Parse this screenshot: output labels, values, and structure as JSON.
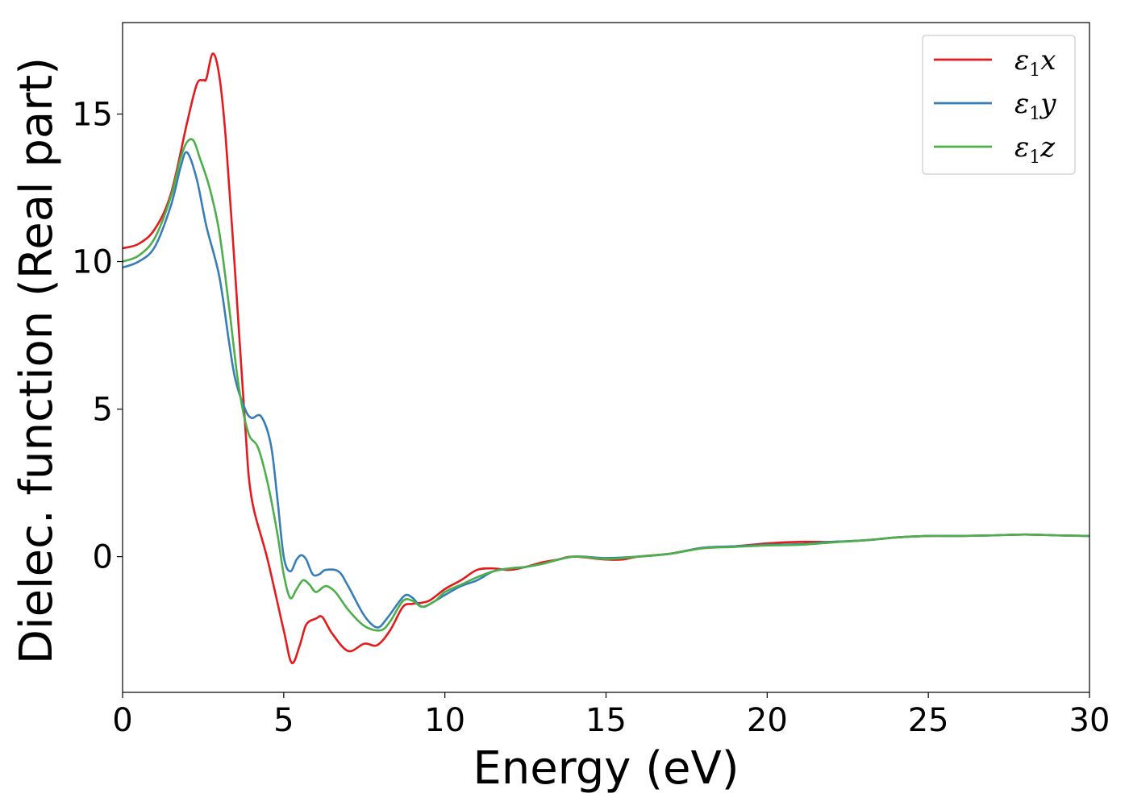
{
  "chart_data": {
    "type": "line",
    "xlabel": "Energy (eV)",
    "ylabel": "Dielec. function (Real part)",
    "xlim": [
      0,
      30
    ],
    "ylim": [
      -4.6,
      18.1
    ],
    "xticks": [
      0,
      5,
      10,
      15,
      20,
      25,
      30
    ],
    "yticks": [
      0,
      5,
      10,
      15
    ],
    "grid": false,
    "legend_position": "top-right",
    "series": [
      {
        "name": "ε₁x",
        "legend_base": "ε",
        "legend_sub": "1",
        "legend_tail": "x",
        "color": "#e41a1c",
        "points": [
          [
            0,
            10.45
          ],
          [
            0.5,
            10.6
          ],
          [
            1,
            11.1
          ],
          [
            1.5,
            12.3
          ],
          [
            2,
            14.7
          ],
          [
            2.3,
            16.0
          ],
          [
            2.5,
            16.15
          ],
          [
            2.6,
            16.2
          ],
          [
            2.8,
            17.05
          ],
          [
            3,
            16.3
          ],
          [
            3.2,
            14.2
          ],
          [
            3.5,
            9.5
          ],
          [
            3.8,
            4.5
          ],
          [
            4,
            2.0
          ],
          [
            4.5,
            -0.1
          ],
          [
            5,
            -2.5
          ],
          [
            5.25,
            -3.6
          ],
          [
            5.5,
            -3.0
          ],
          [
            5.7,
            -2.3
          ],
          [
            6,
            -2.1
          ],
          [
            6.2,
            -2.05
          ],
          [
            6.5,
            -2.6
          ],
          [
            7,
            -3.2
          ],
          [
            7.5,
            -2.95
          ],
          [
            7.9,
            -3.0
          ],
          [
            8.3,
            -2.5
          ],
          [
            8.7,
            -1.7
          ],
          [
            9,
            -1.6
          ],
          [
            9.5,
            -1.5
          ],
          [
            10,
            -1.1
          ],
          [
            10.5,
            -0.8
          ],
          [
            11,
            -0.45
          ],
          [
            11.5,
            -0.4
          ],
          [
            12,
            -0.45
          ],
          [
            12.5,
            -0.35
          ],
          [
            13,
            -0.2
          ],
          [
            13.5,
            -0.1
          ],
          [
            14,
            0.0
          ],
          [
            15,
            -0.1
          ],
          [
            15.5,
            -0.1
          ],
          [
            16,
            0.0
          ],
          [
            17,
            0.1
          ],
          [
            18,
            0.3
          ],
          [
            19,
            0.35
          ],
          [
            20,
            0.45
          ],
          [
            21,
            0.5
          ],
          [
            22,
            0.5
          ],
          [
            23,
            0.55
          ],
          [
            24,
            0.65
          ],
          [
            25,
            0.7
          ],
          [
            26,
            0.7
          ],
          [
            27,
            0.72
          ],
          [
            28,
            0.75
          ],
          [
            29,
            0.72
          ],
          [
            30,
            0.7
          ]
        ]
      },
      {
        "name": "ε₁y",
        "legend_base": "ε",
        "legend_sub": "1",
        "legend_tail": "y",
        "color": "#377eb8",
        "points": [
          [
            0,
            9.8
          ],
          [
            0.5,
            10.0
          ],
          [
            1,
            10.5
          ],
          [
            1.5,
            11.9
          ],
          [
            1.8,
            13.2
          ],
          [
            2,
            13.7
          ],
          [
            2.3,
            12.8
          ],
          [
            2.6,
            11.2
          ],
          [
            3,
            9.5
          ],
          [
            3.3,
            7.3
          ],
          [
            3.5,
            6.0
          ],
          [
            3.8,
            5.0
          ],
          [
            4,
            4.7
          ],
          [
            4.3,
            4.75
          ],
          [
            4.6,
            3.8
          ],
          [
            4.8,
            2.0
          ],
          [
            5,
            0.0
          ],
          [
            5.2,
            -0.5
          ],
          [
            5.4,
            -0.1
          ],
          [
            5.55,
            0.05
          ],
          [
            5.7,
            -0.1
          ],
          [
            5.9,
            -0.6
          ],
          [
            6.1,
            -0.6
          ],
          [
            6.3,
            -0.45
          ],
          [
            6.7,
            -0.5
          ],
          [
            7,
            -1.0
          ],
          [
            7.5,
            -2.0
          ],
          [
            7.9,
            -2.4
          ],
          [
            8.2,
            -2.1
          ],
          [
            8.6,
            -1.5
          ],
          [
            8.8,
            -1.3
          ],
          [
            9,
            -1.4
          ],
          [
            9.3,
            -1.7
          ],
          [
            9.7,
            -1.5
          ],
          [
            10,
            -1.3
          ],
          [
            10.5,
            -1.0
          ],
          [
            11,
            -0.8
          ],
          [
            11.5,
            -0.5
          ],
          [
            12,
            -0.4
          ],
          [
            12.5,
            -0.35
          ],
          [
            13,
            -0.25
          ],
          [
            14,
            0.0
          ],
          [
            15,
            -0.05
          ],
          [
            16,
            0.0
          ],
          [
            17,
            0.1
          ],
          [
            18,
            0.3
          ],
          [
            19,
            0.35
          ],
          [
            20,
            0.4
          ],
          [
            21,
            0.42
          ],
          [
            22,
            0.5
          ],
          [
            23,
            0.55
          ],
          [
            24,
            0.65
          ],
          [
            25,
            0.7
          ],
          [
            26,
            0.7
          ],
          [
            27,
            0.72
          ],
          [
            28,
            0.75
          ],
          [
            29,
            0.72
          ],
          [
            30,
            0.7
          ]
        ]
      },
      {
        "name": "ε₁z",
        "legend_base": "ε",
        "legend_sub": "1",
        "legend_tail": "z",
        "color": "#4daf4a",
        "points": [
          [
            0,
            10.0
          ],
          [
            0.5,
            10.2
          ],
          [
            1,
            10.8
          ],
          [
            1.5,
            12.2
          ],
          [
            1.8,
            13.5
          ],
          [
            2,
            14.05
          ],
          [
            2.2,
            14.1
          ],
          [
            2.4,
            13.5
          ],
          [
            2.7,
            12.5
          ],
          [
            3,
            11.0
          ],
          [
            3.3,
            8.5
          ],
          [
            3.6,
            5.8
          ],
          [
            3.9,
            4.2
          ],
          [
            4.2,
            3.7
          ],
          [
            4.5,
            2.5
          ],
          [
            4.8,
            0.8
          ],
          [
            5,
            -0.6
          ],
          [
            5.2,
            -1.4
          ],
          [
            5.4,
            -1.1
          ],
          [
            5.6,
            -0.8
          ],
          [
            5.8,
            -0.95
          ],
          [
            6,
            -1.2
          ],
          [
            6.3,
            -1.0
          ],
          [
            6.6,
            -1.2
          ],
          [
            7,
            -1.8
          ],
          [
            7.5,
            -2.35
          ],
          [
            8,
            -2.5
          ],
          [
            8.3,
            -2.2
          ],
          [
            8.7,
            -1.5
          ],
          [
            9,
            -1.5
          ],
          [
            9.3,
            -1.7
          ],
          [
            9.7,
            -1.5
          ],
          [
            10,
            -1.2
          ],
          [
            10.5,
            -0.95
          ],
          [
            11,
            -0.7
          ],
          [
            11.5,
            -0.5
          ],
          [
            12,
            -0.4
          ],
          [
            12.5,
            -0.35
          ],
          [
            13,
            -0.25
          ],
          [
            14,
            0.0
          ],
          [
            15,
            -0.08
          ],
          [
            16,
            0.0
          ],
          [
            17,
            0.1
          ],
          [
            18,
            0.28
          ],
          [
            19,
            0.33
          ],
          [
            20,
            0.38
          ],
          [
            21,
            0.4
          ],
          [
            22,
            0.48
          ],
          [
            23,
            0.55
          ],
          [
            24,
            0.65
          ],
          [
            25,
            0.7
          ],
          [
            26,
            0.7
          ],
          [
            27,
            0.72
          ],
          [
            28,
            0.75
          ],
          [
            29,
            0.72
          ],
          [
            30,
            0.7
          ]
        ]
      }
    ]
  }
}
